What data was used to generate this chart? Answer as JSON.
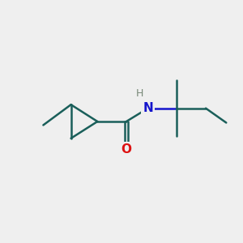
{
  "background_color": "#efefef",
  "bond_color": "#1a5f5a",
  "N_color": "#1414cc",
  "H_color": "#778877",
  "O_color": "#dd1111",
  "line_width": 1.8,
  "figsize": [
    3.0,
    3.0
  ],
  "dpi": 100,
  "xlim": [
    0,
    10
  ],
  "ylim": [
    0,
    10
  ]
}
